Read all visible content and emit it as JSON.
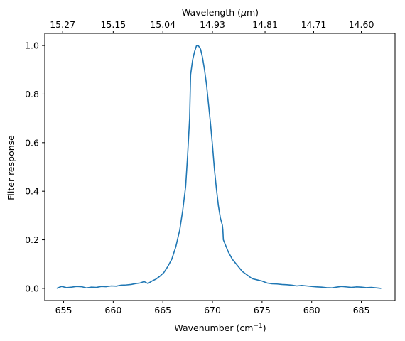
{
  "chart_data": {
    "type": "line",
    "xlabel": "Wavenumber (cm",
    "xlabel_sup": "−1",
    "xlabel_end": ")",
    "ylabel": "Filter response",
    "top_axis_label": "Wavelength (",
    "top_axis_label_unit": "μ",
    "top_axis_label_end": "m)",
    "xlim": [
      653.1,
      688.4
    ],
    "ylim": [
      -0.05,
      1.05
    ],
    "x_ticks": [
      655,
      660,
      665,
      670,
      675,
      680,
      685
    ],
    "y_ticks": [
      0.0,
      0.2,
      0.4,
      0.6,
      0.8,
      1.0
    ],
    "y_tick_labels": [
      "0.0",
      "0.2",
      "0.4",
      "0.6",
      "0.8",
      "1.0"
    ],
    "top_ticks": [
      {
        "label": "15.27",
        "x": 654.9
      },
      {
        "label": "15.15",
        "x": 660.0
      },
      {
        "label": "15.04",
        "x": 665.0
      },
      {
        "label": "14.93",
        "x": 670.0
      },
      {
        "label": "14.81",
        "x": 675.3
      },
      {
        "label": "14.71",
        "x": 680.2
      },
      {
        "label": "14.60",
        "x": 685.0
      }
    ],
    "grid": false,
    "color": "#1f77b4",
    "series": [
      {
        "x": [
          654.3,
          654.8,
          655.3,
          655.8,
          656.3,
          656.8,
          657.3,
          657.8,
          658.3,
          658.8,
          659.3,
          659.8,
          660.3,
          660.8,
          661.3,
          661.8,
          662.3,
          662.7,
          663.1,
          663.5,
          663.9,
          664.3,
          664.7,
          665.1,
          665.5,
          665.9,
          666.3,
          666.7,
          667.0,
          667.3,
          667.5,
          667.7,
          667.8,
          667.9,
          668.0,
          668.2,
          668.4,
          668.6,
          668.8,
          669.0,
          669.2,
          669.4,
          669.6,
          669.8,
          670.0,
          670.2,
          670.4,
          670.6,
          670.8,
          671.0,
          671.05,
          671.1,
          671.3,
          671.6,
          672.0,
          672.5,
          673.0,
          673.5,
          674.0,
          674.5,
          675.0,
          675.5,
          676.0,
          676.5,
          677.0,
          677.5,
          678.0,
          678.5,
          679.0,
          679.5,
          680.0,
          680.5,
          681.0,
          681.5,
          682.0,
          682.5,
          683.0,
          683.5,
          684.0,
          684.5,
          685.0,
          685.5,
          686.0,
          686.5,
          687.0
        ],
        "y": [
          0.0,
          0.008,
          0.003,
          0.005,
          0.008,
          0.007,
          0.002,
          0.005,
          0.004,
          0.008,
          0.007,
          0.01,
          0.009,
          0.013,
          0.014,
          0.016,
          0.02,
          0.022,
          0.028,
          0.02,
          0.03,
          0.038,
          0.05,
          0.065,
          0.09,
          0.12,
          0.17,
          0.24,
          0.32,
          0.42,
          0.55,
          0.7,
          0.88,
          0.91,
          0.94,
          0.975,
          1.0,
          0.998,
          0.985,
          0.95,
          0.9,
          0.84,
          0.76,
          0.68,
          0.59,
          0.49,
          0.41,
          0.34,
          0.29,
          0.26,
          0.24,
          0.2,
          0.18,
          0.15,
          0.12,
          0.095,
          0.07,
          0.055,
          0.04,
          0.035,
          0.03,
          0.022,
          0.019,
          0.018,
          0.016,
          0.015,
          0.013,
          0.01,
          0.012,
          0.01,
          0.008,
          0.006,
          0.005,
          0.003,
          0.002,
          0.005,
          0.008,
          0.006,
          0.004,
          0.006,
          0.005,
          0.003,
          0.004,
          0.002,
          0.0
        ]
      }
    ]
  }
}
